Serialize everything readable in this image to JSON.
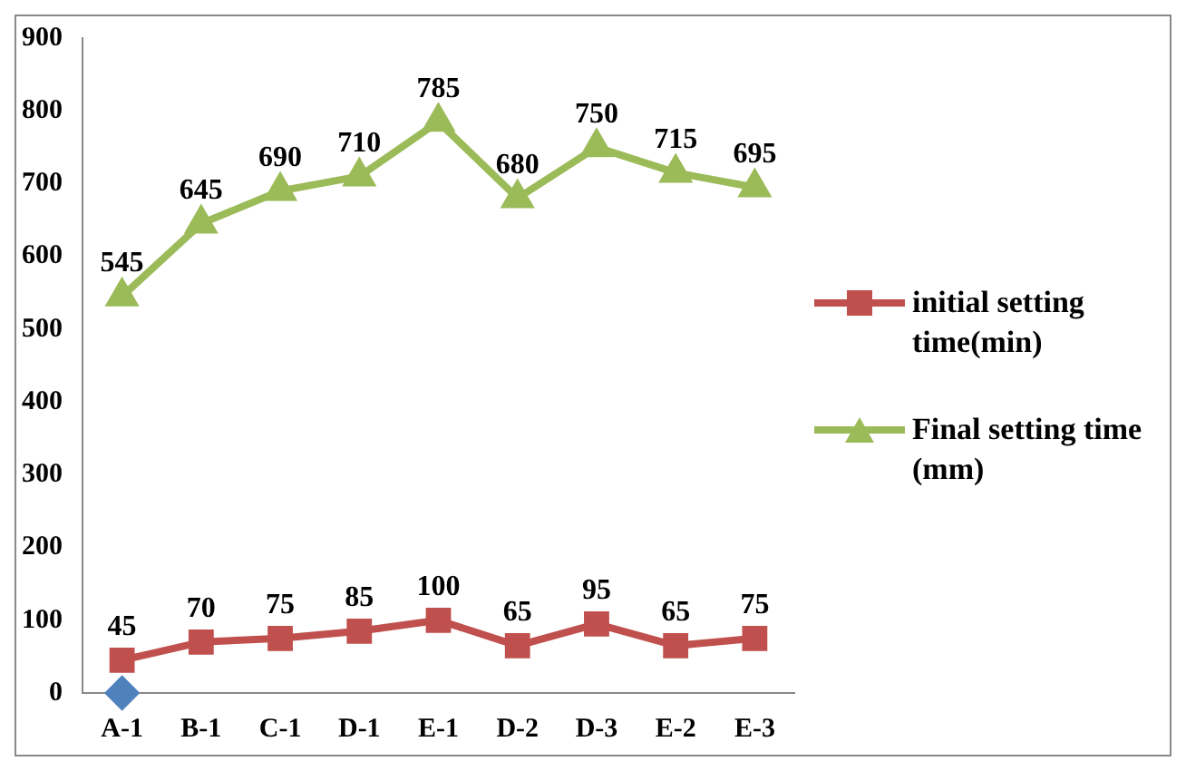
{
  "chart_data": {
    "type": "line",
    "categories": [
      "A-1",
      "B-1",
      "C-1",
      "D-1",
      "E-1",
      "D-2",
      "D-3",
      "E-2",
      "E-3"
    ],
    "series": [
      {
        "name": "initial setting time(min)",
        "color": "#c0504d",
        "marker": "square",
        "values": [
          45,
          70,
          75,
          85,
          100,
          65,
          95,
          65,
          75
        ],
        "value_labels": [
          "45",
          "70",
          "75",
          "85",
          "100",
          "65",
          "95",
          "65",
          "75"
        ]
      },
      {
        "name": "Final setting time (mm)",
        "color": "#9bbb59",
        "marker": "triangle",
        "values": [
          545,
          645,
          690,
          710,
          785,
          680,
          750,
          715,
          695
        ],
        "value_labels": [
          "545",
          "645",
          "690",
          "710",
          "785",
          "680",
          "750",
          "715",
          "695"
        ]
      },
      {
        "type": "scatter",
        "color": "#4f81bd",
        "marker": "diamond",
        "values": [
          0,
          null,
          null,
          null,
          null,
          null,
          null,
          null,
          null
        ]
      }
    ],
    "ylim": [
      0,
      900
    ],
    "yticks": [
      0,
      100,
      200,
      300,
      400,
      500,
      600,
      700,
      800,
      900
    ],
    "grid": false,
    "legend": "right"
  }
}
